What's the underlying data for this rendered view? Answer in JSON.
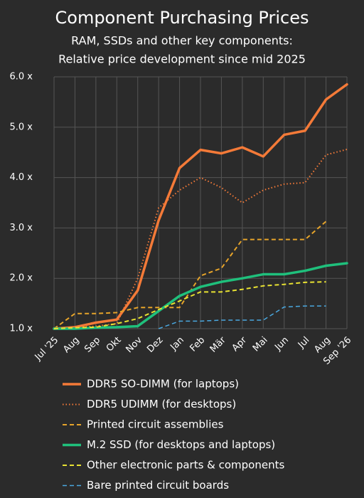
{
  "chart_data": {
    "type": "line",
    "title": "Component Purchasing Prices",
    "subtitle": [
      "RAM, SSDs and other key components:",
      "Relative price development since mid 2025"
    ],
    "categories": [
      "Jul '25",
      "Aug",
      "Sep",
      "Okt",
      "Nov",
      "Dez",
      "Jan",
      "Feb",
      "Mär",
      "Apr",
      "Mai",
      "Jun",
      "Jul",
      "Aug",
      "Sep '26"
    ],
    "ylim": [
      1,
      6
    ],
    "yticks": [
      {
        "value": 1,
        "label": "1.0 x"
      },
      {
        "value": 2,
        "label": "2.0 x"
      },
      {
        "value": 3,
        "label": "3.0 x"
      },
      {
        "value": 4,
        "label": "4.0 x"
      },
      {
        "value": 5,
        "label": "5.0 x"
      },
      {
        "value": 6,
        "label": "6.0 x"
      }
    ],
    "grid": true,
    "series": [
      {
        "name": "DDR5 SO-DIMM (for laptops)",
        "color": "#f47a38",
        "dash": "solid",
        "width": 3.5,
        "values": [
          1.0,
          1.03,
          1.12,
          1.18,
          1.76,
          3.15,
          4.19,
          4.55,
          4.48,
          4.6,
          4.42,
          4.85,
          4.93,
          5.55,
          5.85
        ]
      },
      {
        "name": "DDR5 UDIMM (for desktops)",
        "color": "#f47a38",
        "dash": "dotted",
        "width": 2,
        "values": [
          1.0,
          1.02,
          1.05,
          1.1,
          2.0,
          3.4,
          3.75,
          4.0,
          3.8,
          3.5,
          3.75,
          3.87,
          3.9,
          4.45,
          4.56
        ]
      },
      {
        "name": "Printed circuit assemblies",
        "color": "#e6a42a",
        "dash": "dashed",
        "width": 2,
        "values": [
          1.0,
          1.3,
          1.3,
          1.32,
          1.42,
          1.42,
          1.42,
          2.05,
          2.2,
          2.77,
          2.77,
          2.77,
          2.77,
          3.13,
          null
        ]
      },
      {
        "name": "M.2 SSD (for desktops and laptops)",
        "color": "#1fc07c",
        "dash": "solid",
        "width": 3.5,
        "values": [
          1.0,
          1.0,
          1.02,
          1.03,
          1.05,
          1.35,
          1.65,
          1.83,
          1.93,
          2.0,
          2.08,
          2.08,
          2.15,
          2.25,
          2.3
        ]
      },
      {
        "name": "Other electronic parts & components",
        "color": "#e8e232",
        "dash": "dashed",
        "width": 2,
        "values": [
          1.0,
          1.02,
          1.03,
          1.1,
          1.2,
          1.38,
          1.55,
          1.73,
          1.73,
          1.78,
          1.85,
          1.88,
          1.92,
          1.93,
          null
        ]
      },
      {
        "name": "Bare printed circuit boards",
        "color": "#4aa8e0",
        "dash": "dashed",
        "width": 1.5,
        "values": [
          null,
          null,
          null,
          null,
          null,
          1.0,
          1.15,
          1.15,
          1.17,
          1.17,
          1.17,
          1.43,
          1.45,
          1.45,
          null
        ]
      }
    ]
  }
}
